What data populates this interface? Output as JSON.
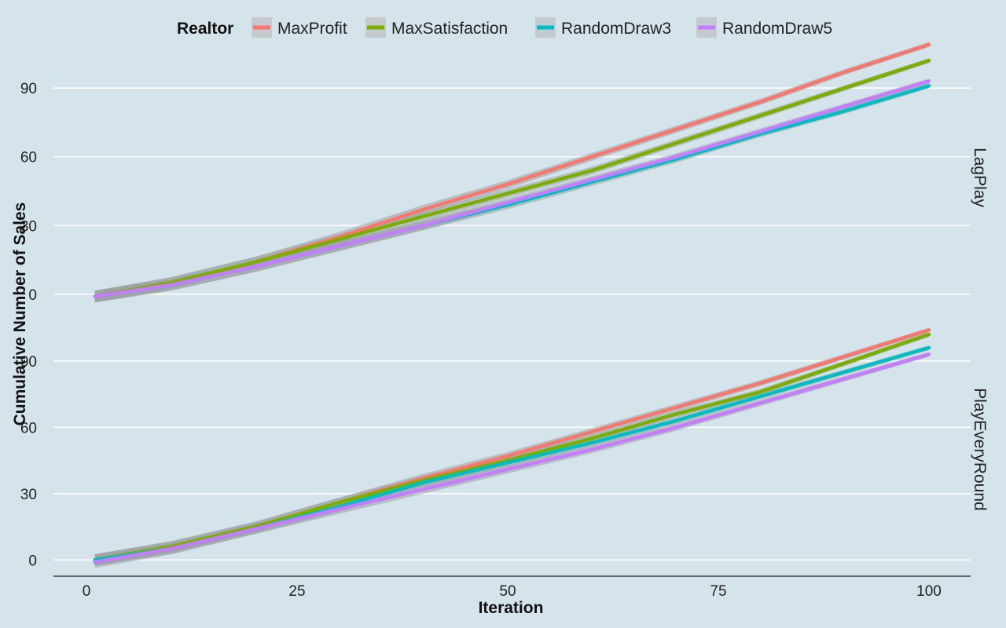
{
  "chart_data": {
    "type": "line",
    "xlabel": "Iteration",
    "ylabel": "Cumulative Number of Sales",
    "x_ticks": [
      0,
      25,
      50,
      75,
      100
    ],
    "y_ticks": [
      0,
      30,
      60,
      90
    ],
    "xlim": [
      -2,
      105
    ],
    "legend": {
      "title": "Realtor",
      "position": "top",
      "entries": [
        {
          "name": "MaxProfit",
          "color": "#f8766d"
        },
        {
          "name": "MaxSatisfaction",
          "color": "#7cae00"
        },
        {
          "name": "RandomDraw3",
          "color": "#00bfc4"
        },
        {
          "name": "RandomDraw5",
          "color": "#c77cff"
        }
      ]
    },
    "grid": true,
    "x": [
      1,
      10,
      20,
      30,
      40,
      50,
      60,
      70,
      80,
      90,
      100
    ],
    "panels": [
      {
        "strip": "LagPlay",
        "ylim": [
          -10,
          112
        ],
        "series": [
          {
            "name": "MaxProfit",
            "color": "#f8766d",
            "values": [
              -1,
              5,
              14,
              25,
              37,
              48,
              60,
              72,
              84,
              97,
              109
            ]
          },
          {
            "name": "MaxSatisfaction",
            "color": "#7cae00",
            "values": [
              -1,
              5,
              14,
              24,
              34,
              44,
              54,
              66,
              78,
              90,
              102
            ]
          },
          {
            "name": "RandomDraw3",
            "color": "#00bfc4",
            "values": [
              -1,
              4,
              12,
              21,
              30,
              39,
              49,
              59,
              70,
              80,
              91
            ]
          },
          {
            "name": "RandomDraw5",
            "color": "#c77cff",
            "values": [
              -1,
              4,
              12,
              21,
              30,
              40,
              50,
              60,
              71,
              82,
              93
            ]
          }
        ]
      },
      {
        "strip": "PlayEveryRound",
        "ylim": [
          -7,
          107
        ],
        "series": [
          {
            "name": "MaxProfit",
            "color": "#f8766d",
            "values": [
              0,
              6,
              15,
              26,
              37,
              47,
              58,
              69,
              80,
              92,
              104
            ]
          },
          {
            "name": "MaxSatisfaction",
            "color": "#7cae00",
            "values": [
              0,
              6,
              15,
              26,
              36,
              45,
              55,
              66,
              76,
              89,
              102
            ]
          },
          {
            "name": "RandomDraw3",
            "color": "#00bfc4",
            "values": [
              0,
              5,
              14,
              24,
              35,
              44,
              53,
              63,
              74,
              85,
              96
            ]
          },
          {
            "name": "RandomDraw5",
            "color": "#c77cff",
            "values": [
              -1,
              5,
              14,
              23,
              32,
              41,
              50,
              60,
              71,
              82,
              93
            ]
          }
        ]
      }
    ]
  }
}
